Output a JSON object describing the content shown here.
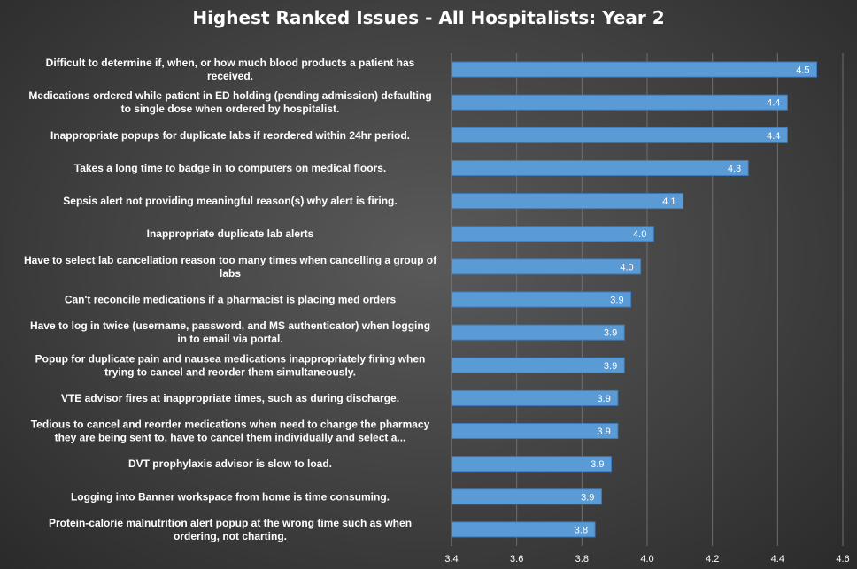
{
  "chart_data": {
    "type": "bar",
    "orientation": "horizontal",
    "title": "Highest Ranked Issues - All Hospitalists: Year 2",
    "xlabel": "",
    "ylabel": "",
    "xlim": [
      3.4,
      4.6
    ],
    "x_ticks": [
      "3.4",
      "3.6",
      "3.8",
      "4.0",
      "4.2",
      "4.4",
      "4.6"
    ],
    "grid": true,
    "colors": {
      "bar": "#5b9bd5",
      "bar_edge": "#3e7cc0",
      "text": "#ffffff",
      "grid": "#6e6e6e"
    },
    "categories": [
      [
        "Difficult to determine if, when, or how much blood products a patient has",
        "received."
      ],
      [
        "Medications ordered while patient in ED holding (pending admission) defaulting",
        "to single dose when ordered by hospitalist."
      ],
      [
        "Inappropriate popups for duplicate labs if reordered within 24hr period."
      ],
      [
        "Takes a long time to badge in to computers on medical floors."
      ],
      [
        "Sepsis alert not providing meaningful reason(s) why alert is firing."
      ],
      [
        "Inappropriate duplicate lab alerts"
      ],
      [
        "Have to select lab cancellation reason too many times when cancelling a group of",
        "labs"
      ],
      [
        "Can't reconcile medications if a pharmacist is placing med orders"
      ],
      [
        "Have to log in twice (username, password, and MS authenticator) when logging",
        "in to email via portal."
      ],
      [
        "Popup for duplicate pain and nausea medications inappropriately firing when",
        "trying to cancel and reorder them simultaneously."
      ],
      [
        "VTE advisor fires at inappropriate times, such as during discharge."
      ],
      [
        "Tedious to cancel and reorder medications when need to change the pharmacy",
        "they are being sent to, have to cancel them individually and select a..."
      ],
      [
        "DVT prophylaxis advisor is slow to load."
      ],
      [
        "Logging into Banner workspace from home is time consuming."
      ],
      [
        "Protein-calorie malnutrition alert popup at the wrong time such as when",
        "ordering, not charting."
      ]
    ],
    "values": [
      4.52,
      4.43,
      4.43,
      4.31,
      4.11,
      4.02,
      3.98,
      3.95,
      3.93,
      3.93,
      3.91,
      3.91,
      3.89,
      3.86,
      3.84
    ],
    "data_labels": [
      "4.5",
      "4.4",
      "4.4",
      "4.3",
      "4.1",
      "4.0",
      "4.0",
      "3.9",
      "3.9",
      "3.9",
      "3.9",
      "3.9",
      "3.9",
      "3.9",
      "3.8"
    ]
  }
}
